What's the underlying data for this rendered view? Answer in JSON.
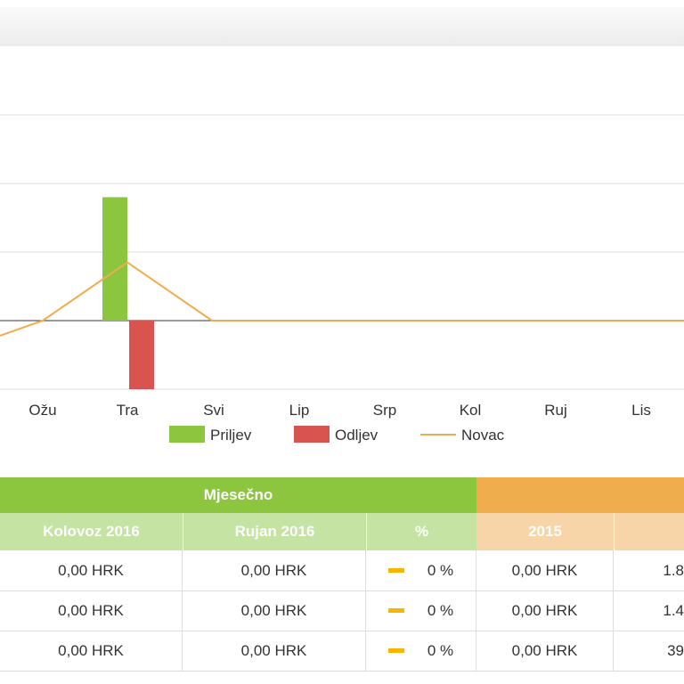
{
  "chart_data": {
    "type": "bar",
    "categories": [
      "Ožu",
      "Tra",
      "Svi",
      "Lip",
      "Srp",
      "Kol",
      "Ruj",
      "Lis"
    ],
    "series": [
      {
        "name": "Priljev",
        "type": "bar",
        "color": "#8cc63f",
        "values": [
          0,
          1.8,
          0,
          0,
          0,
          0,
          0,
          0
        ]
      },
      {
        "name": "Odljev",
        "type": "bar",
        "color": "#d9534f",
        "values": [
          0,
          -1.0,
          0,
          0,
          0,
          0,
          0,
          0
        ]
      },
      {
        "name": "Novac",
        "type": "line",
        "color": "#f0ad4e",
        "values": [
          0,
          0.85,
          0,
          0,
          0,
          0,
          0,
          0
        ]
      }
    ],
    "ylim": [
      -1.0,
      3.0
    ],
    "grid": true,
    "legend": "bottom-center"
  },
  "table": {
    "group_monthly": "Mjesečno",
    "columns": [
      "Kolovoz 2016",
      "Rujan 2016",
      "%",
      "2015"
    ],
    "rows": [
      {
        "a": "0,00 HRK",
        "b": "0,00 HRK",
        "pct": "0 %",
        "y2015": "0,00 HRK",
        "extra": "1.8"
      },
      {
        "a": "0,00 HRK",
        "b": "0,00 HRK",
        "pct": "0 %",
        "y2015": "0,00 HRK",
        "extra": "1.4"
      },
      {
        "a": "0,00 HRK",
        "b": "0,00 HRK",
        "pct": "0 %",
        "y2015": "0,00 HRK",
        "extra": "39"
      }
    ]
  },
  "colors": {
    "green": "#8cc63f",
    "light_green": "#c5e3a3",
    "orange": "#f0ad4e",
    "light_orange": "#f8d5a8",
    "dash": "#f7b500"
  }
}
